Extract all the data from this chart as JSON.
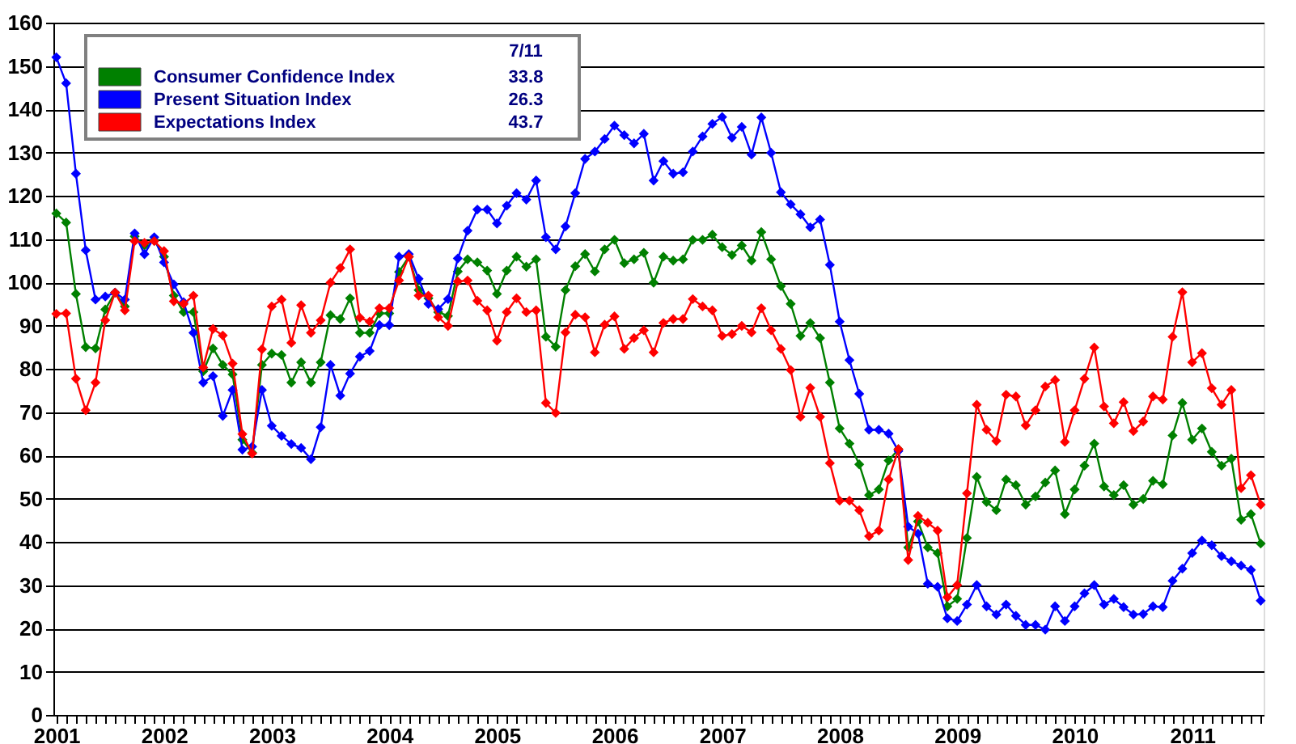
{
  "chart_data": {
    "type": "line",
    "categories": [
      "2001",
      null,
      null,
      null,
      null,
      null,
      null,
      null,
      null,
      null,
      null,
      "2002",
      null,
      null,
      null,
      null,
      null,
      null,
      null,
      null,
      null,
      null,
      "2003",
      null,
      null,
      null,
      null,
      null,
      null,
      null,
      null,
      null,
      null,
      null,
      "2004",
      null,
      null,
      null,
      null,
      null,
      null,
      null,
      null,
      null,
      null,
      "2005",
      null,
      null,
      null,
      null,
      null,
      null,
      null,
      null,
      null,
      null,
      null,
      "2006",
      null,
      null,
      null,
      null,
      null,
      null,
      null,
      null,
      null,
      null,
      "2007",
      null,
      null,
      null,
      null,
      null,
      null,
      null,
      null,
      null,
      null,
      null,
      "2008",
      null,
      null,
      null,
      null,
      null,
      null,
      null,
      null,
      null,
      null,
      null,
      "2009",
      null,
      null,
      null,
      null,
      null,
      null,
      null,
      null,
      null,
      null,
      null,
      "2010",
      null,
      null,
      null,
      null,
      null,
      null,
      null,
      null,
      null,
      null,
      null,
      "2011",
      null,
      null,
      null,
      null,
      null,
      null,
      null
    ],
    "series": [
      {
        "name": "Consumer Confidence Index",
        "color": "#008000",
        "values": [
          115.9,
          113.8,
          97.3,
          85,
          84.7,
          93.7,
          97.6,
          94.4,
          110.6,
          108.5,
          109.7,
          105.9,
          96.9,
          93.1,
          93.1,
          79.4,
          84.7,
          80.9,
          78.7,
          63.6,
          60.6,
          80.9,
          83.5,
          83.2,
          76.8,
          81.5,
          76.8,
          81.5,
          92.4,
          91.5,
          96.3,
          88.3,
          88.3,
          92.8,
          92.8,
          102.4,
          105.9,
          98.2,
          96.3,
          93.1,
          92.2,
          102.5,
          105.3,
          104.6,
          102.7,
          97.3,
          102.7,
          105.9,
          103.6,
          105.3,
          87.4,
          85.1,
          98.2,
          103.7,
          106.5,
          102.5,
          107.6,
          109.8,
          104.4,
          105.3,
          106.8,
          99.9,
          105.9,
          105,
          105.3,
          109.8,
          109.8,
          111,
          108.1,
          106.3,
          108.5,
          105,
          111.6,
          105.3,
          99.1,
          95,
          87.6,
          90.6,
          87.1,
          76.8,
          66.2,
          62.7,
          57.9,
          50.8,
          52.1,
          58.8,
          61.4,
          38.7,
          44.7,
          38.7,
          37.4,
          25.1,
          26.8,
          40.9,
          55,
          49.2,
          47.3,
          54.4,
          53.1,
          48.6,
          50.5,
          53.7,
          56.5,
          46.4,
          52.1,
          57.6,
          62.7,
          52.8,
          50.8,
          53.1,
          48.6,
          49.9,
          54.1,
          53.3,
          64.6,
          72.1,
          63.6,
          66.2,
          60.8,
          57.6,
          59.2,
          45.1,
          46.4,
          39.6
        ]
      },
      {
        "name": "Present Situation Index",
        "color": "#0000ff",
        "values": [
          152,
          146,
          125.1,
          107.4,
          96,
          96.7,
          97.6,
          96,
          111.3,
          106.5,
          110.4,
          104.6,
          99.5,
          95.4,
          88.3,
          76.8,
          78.3,
          69.1,
          75.1,
          61.3,
          62,
          75.1,
          66.8,
          64.5,
          62.6,
          61.7,
          59.1,
          66.5,
          80.9,
          73.8,
          78.9,
          82.8,
          84.1,
          90.1,
          90.1,
          105.9,
          106.5,
          100.8,
          95,
          93.8,
          96.1,
          105.5,
          111.9,
          116.8,
          116.8,
          113.6,
          117.7,
          120.6,
          119.1,
          123.5,
          110.4,
          107.6,
          112.9,
          120.6,
          128.5,
          130.2,
          133.1,
          136.2,
          134,
          132.1,
          134.3,
          123.5,
          128,
          125.1,
          125.4,
          130.2,
          133.7,
          136.6,
          138.2,
          133.4,
          135.9,
          129.5,
          138.1,
          129.9,
          120.8,
          118,
          115.7,
          112.7,
          114.5,
          104,
          90.9,
          82,
          74.2,
          65.9,
          65.9,
          65,
          61,
          43.5,
          41.9,
          30.3,
          29.6,
          22.3,
          21.7,
          25.5,
          30,
          25.1,
          23.2,
          25.5,
          22.9,
          20.8,
          20.8,
          19.7,
          25.1,
          21.7,
          25.1,
          28.1,
          30,
          25.5,
          26.8,
          24.9,
          23.2,
          23.3,
          25.1,
          24.9,
          31,
          33.8,
          37.4,
          40.3,
          39.2,
          36.7,
          35.5,
          34.5,
          33.5,
          26.4
        ]
      },
      {
        "name": "Expectations Index",
        "color": "#ff0000",
        "values": [
          92.7,
          92.8,
          77.7,
          70.4,
          76.8,
          91.2,
          97.6,
          93.5,
          109.5,
          109.1,
          109.5,
          107.2,
          95.6,
          95,
          96.9,
          80.3,
          89.2,
          87.7,
          81.2,
          64.9,
          60.4,
          84.5,
          94.4,
          96,
          86,
          94.7,
          88.3,
          91.2,
          99.9,
          103.3,
          107.6,
          91.8,
          90.9,
          94,
          94,
          100.4,
          105.9,
          96.9,
          96.9,
          91.9,
          89.9,
          100.2,
          100.4,
          95.7,
          93.5,
          86.5,
          93.1,
          96.3,
          93.1,
          93.5,
          72.1,
          69.8,
          88.4,
          92.5,
          91.9,
          83.8,
          90.2,
          92.1,
          84.6,
          87.1,
          88.9,
          83.8,
          90.6,
          91.5,
          91.5,
          96.1,
          94.4,
          93.5,
          87.6,
          88,
          89.9,
          88.4,
          94,
          88.9,
          84.6,
          79.7,
          68.9,
          75.6,
          68.9,
          58.2,
          49.5,
          49.5,
          47.3,
          41.3,
          42.6,
          54.4,
          61.4,
          35.8,
          46,
          44.4,
          42.6,
          27.2,
          30,
          51.2,
          71.7,
          65.9,
          63.3,
          74,
          73.6,
          66.9,
          70.4,
          75.9,
          77.4,
          63.1,
          70.4,
          77.7,
          84.9,
          71.3,
          67.4,
          72.3,
          65.6,
          67.8,
          73.6,
          72.9,
          87.4,
          97.7,
          81.5,
          83.6,
          75.5,
          71.7,
          75.1,
          52.4,
          55.4,
          48.6
        ]
      }
    ],
    "annotations": [
      "7/11",
      "33.8",
      "26.3",
      "43.7"
    ],
    "ylim": [
      0,
      160
    ],
    "yticks": [
      0,
      10,
      20,
      30,
      40,
      50,
      60,
      70,
      80,
      90,
      100,
      110,
      120,
      130,
      140,
      150,
      160
    ],
    "grid": "y",
    "legend": "top left",
    "marker": "diamond",
    "line_style": "solid"
  }
}
